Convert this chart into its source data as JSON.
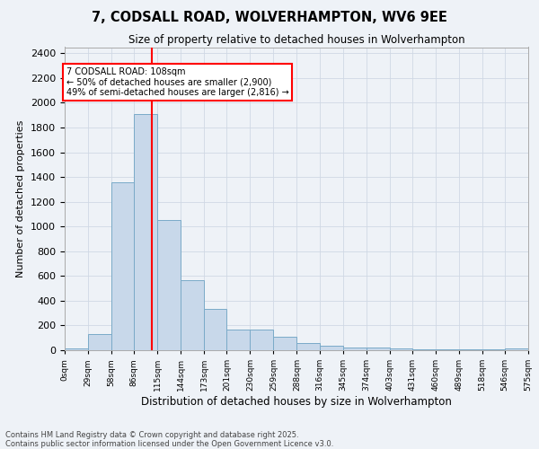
{
  "title_line1": "7, CODSALL ROAD, WOLVERHAMPTON, WV6 9EE",
  "title_line2": "Size of property relative to detached houses in Wolverhampton",
  "xlabel": "Distribution of detached houses by size in Wolverhampton",
  "ylabel": "Number of detached properties",
  "bar_color": "#c8d8ea",
  "bar_edge_color": "#7aaac8",
  "background_color": "#eef2f7",
  "grid_color": "#d0d8e4",
  "vline_x": 108,
  "vline_color": "red",
  "annotation_text": "7 CODSALL ROAD: 108sqm\n← 50% of detached houses are smaller (2,900)\n49% of semi-detached houses are larger (2,816) →",
  "annotation_box_color": "white",
  "annotation_box_edge": "red",
  "footer_line1": "Contains HM Land Registry data © Crown copyright and database right 2025.",
  "footer_line2": "Contains public sector information licensed under the Open Government Licence v3.0.",
  "bin_edges": [
    0,
    29,
    58,
    86,
    115,
    144,
    173,
    201,
    230,
    259,
    288,
    316,
    345,
    374,
    403,
    431,
    460,
    489,
    518,
    546,
    575
  ],
  "bin_labels": [
    "0sqm",
    "29sqm",
    "58sqm",
    "86sqm",
    "115sqm",
    "144sqm",
    "173sqm",
    "201sqm",
    "230sqm",
    "259sqm",
    "288sqm",
    "316sqm",
    "345sqm",
    "374sqm",
    "403sqm",
    "431sqm",
    "460sqm",
    "489sqm",
    "518sqm",
    "546sqm",
    "575sqm"
  ],
  "bar_heights": [
    15,
    130,
    1360,
    1910,
    1055,
    565,
    335,
    170,
    165,
    110,
    60,
    35,
    25,
    25,
    15,
    10,
    5,
    5,
    5,
    15
  ],
  "ylim": [
    0,
    2450
  ],
  "yticks": [
    0,
    200,
    400,
    600,
    800,
    1000,
    1200,
    1400,
    1600,
    1800,
    2000,
    2200,
    2400
  ]
}
